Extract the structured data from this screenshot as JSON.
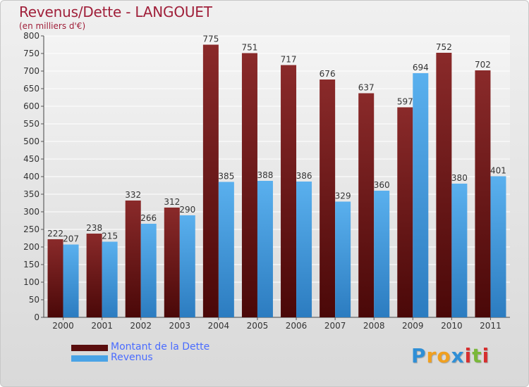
{
  "title": "Revenus/Dette - LANGOUET",
  "subtitle": "(en milliers d'€)",
  "chart_data": {
    "type": "bar",
    "title": "Revenus/Dette - LANGOUET",
    "ylabel": "(en milliers d'€)",
    "xlabel": "",
    "categories": [
      "2000",
      "2001",
      "2002",
      "2003",
      "2004",
      "2005",
      "2006",
      "2007",
      "2008",
      "2009",
      "2010",
      "2011"
    ],
    "series": [
      {
        "name": "Montant de la Dette",
        "color": "#7a1a1a",
        "values": [
          222,
          238,
          332,
          312,
          775,
          751,
          717,
          676,
          637,
          597,
          752,
          702
        ]
      },
      {
        "name": "Revenus",
        "color": "#4aa3e6",
        "values": [
          207,
          215,
          266,
          290,
          385,
          388,
          386,
          329,
          360,
          694,
          380,
          401
        ]
      }
    ],
    "ylim": [
      0,
      800
    ],
    "yticks": [
      0,
      50,
      100,
      150,
      200,
      250,
      300,
      350,
      400,
      450,
      500,
      550,
      600,
      650,
      700,
      750,
      800
    ],
    "grid": true,
    "legend_position": "bottom-left"
  },
  "legend": [
    {
      "label": "Montant de la Dette",
      "color": "#5a0e0e",
      "text_color": "#4a6cff"
    },
    {
      "label": "Revenus",
      "color": "#4aa3e6",
      "text_color": "#4a6cff"
    }
  ],
  "logo": {
    "letters": [
      "P",
      "r",
      "o",
      "x",
      "i",
      "t",
      "i"
    ],
    "colors": [
      "#2f8fd6",
      "#f0a020",
      "#f0a020",
      "#2f8fd6",
      "#d62f2f",
      "#7ab83a",
      "#d62f2f"
    ]
  }
}
